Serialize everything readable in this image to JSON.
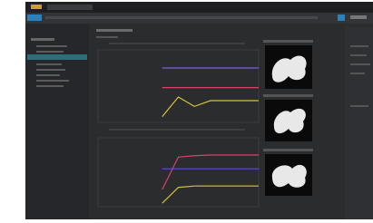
{
  "chart_data": [
    {
      "type": "line",
      "x": [
        0,
        1,
        2,
        3,
        4,
        5,
        6,
        7,
        8,
        9,
        10
      ],
      "xlim": [
        0,
        10
      ],
      "ylim": [
        0,
        1
      ],
      "series": [
        {
          "color": "#7b5fd6",
          "values": [
            null,
            null,
            null,
            null,
            0.75,
            0.75,
            0.75,
            0.75,
            0.75,
            0.75,
            0.75
          ]
        },
        {
          "color": "#d8436a",
          "values": [
            null,
            null,
            null,
            null,
            0.48,
            0.48,
            0.48,
            0.48,
            0.48,
            0.48,
            0.48
          ]
        },
        {
          "color": "#d6c23a",
          "values": [
            null,
            null,
            null,
            null,
            0.08,
            0.35,
            0.22,
            0.3,
            0.3,
            0.3,
            0.3
          ]
        }
      ]
    },
    {
      "type": "line",
      "x": [
        0,
        1,
        2,
        3,
        4,
        5,
        6,
        7,
        8,
        9,
        10
      ],
      "xlim": [
        0,
        10
      ],
      "ylim": [
        0,
        1
      ],
      "series": [
        {
          "color": "#d8436a",
          "values": [
            null,
            null,
            null,
            null,
            0.25,
            0.72,
            0.74,
            0.75,
            0.75,
            0.75,
            0.75
          ]
        },
        {
          "color": "#5b4fd0",
          "values": [
            null,
            null,
            null,
            null,
            0.55,
            0.55,
            0.55,
            0.55,
            0.55,
            0.55,
            0.55
          ]
        },
        {
          "color": "#d6c23a",
          "values": [
            null,
            null,
            null,
            null,
            0.05,
            0.28,
            0.3,
            0.3,
            0.3,
            0.3,
            0.3
          ]
        }
      ]
    }
  ]
}
